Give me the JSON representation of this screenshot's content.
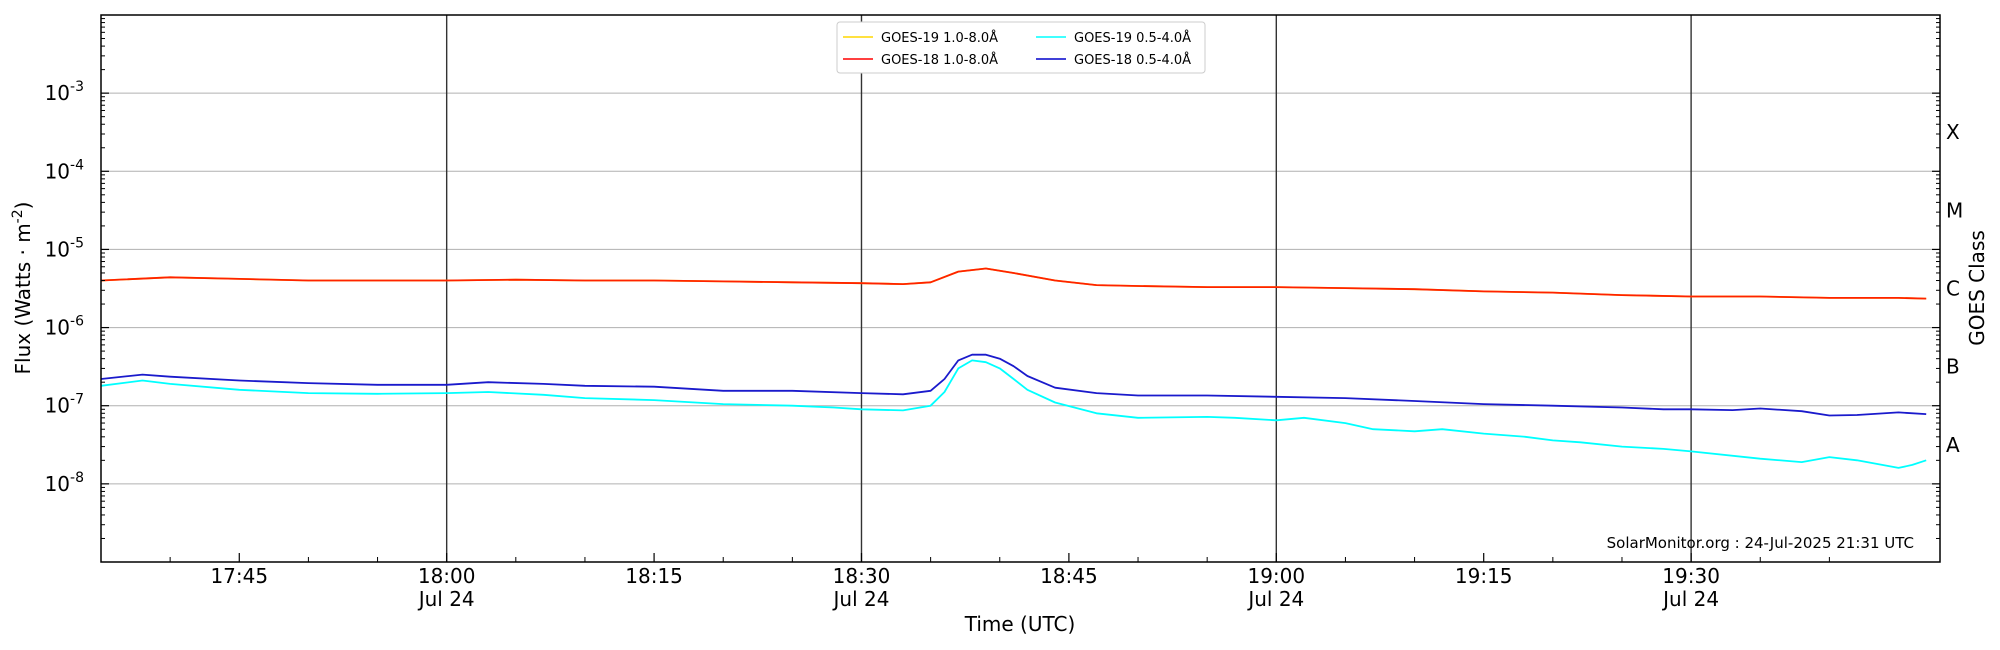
{
  "chart_data": {
    "type": "line",
    "xlabel": "Time (UTC)",
    "ylabel": "Flux (Watts · m",
    "ylabel_unit_exponent": "-2",
    "ylabel_close": ")",
    "y_scale": "log",
    "ylim": [
      1e-09,
      0.01
    ],
    "xlim": [
      "17:35",
      "19:48"
    ],
    "y_ticks": [
      {
        "value": 1e-08,
        "base": "10",
        "exp": "-8"
      },
      {
        "value": 1e-07,
        "base": "10",
        "exp": "-7"
      },
      {
        "value": 1e-06,
        "base": "10",
        "exp": "-6"
      },
      {
        "value": 1e-05,
        "base": "10",
        "exp": "-5"
      },
      {
        "value": 0.0001,
        "base": "10",
        "exp": "-4"
      },
      {
        "value": 0.001,
        "base": "10",
        "exp": "-3"
      }
    ],
    "x_ticks": [
      {
        "time": "17:45",
        "label": "17:45",
        "date": ""
      },
      {
        "time": "18:00",
        "label": "18:00",
        "date": "Jul 24"
      },
      {
        "time": "18:15",
        "label": "18:15",
        "date": ""
      },
      {
        "time": "18:30",
        "label": "18:30",
        "date": "Jul 24"
      },
      {
        "time": "18:45",
        "label": "18:45",
        "date": ""
      },
      {
        "time": "19:00",
        "label": "19:00",
        "date": "Jul 24"
      },
      {
        "time": "19:15",
        "label": "19:15",
        "date": ""
      },
      {
        "time": "19:30",
        "label": "19:30",
        "date": "Jul 24"
      }
    ],
    "vertical_lines": [
      "18:00",
      "18:30",
      "19:00",
      "19:30"
    ],
    "grid": "horizontal",
    "right_axis": {
      "title": "GOES Class",
      "classes": [
        {
          "label": "A",
          "value": 1e-08
        },
        {
          "label": "B",
          "value": 1e-07
        },
        {
          "label": "C",
          "value": 1e-06
        },
        {
          "label": "M",
          "value": 1e-05
        },
        {
          "label": "X",
          "value": 0.0001
        }
      ]
    },
    "legend": {
      "location": "upper center",
      "entries": [
        {
          "name": "GOES-19 1.0-8.0Å",
          "color": "#ffd700"
        },
        {
          "name": "GOES-19 0.5-4.0Å",
          "color": "#00ffff"
        },
        {
          "name": "GOES-18 1.0-8.0Å",
          "color": "#ff0000"
        },
        {
          "name": "GOES-18 0.5-4.0Å",
          "color": "#0000cc"
        }
      ]
    },
    "credit": "SolarMonitor.org : 24-Jul-2025 21:31 UTC",
    "series": [
      {
        "name": "GOES-19 1.0-8.0Å",
        "color": "#ffd700",
        "x": [
          "17:35",
          "17:40",
          "17:45",
          "17:50",
          "17:55",
          "18:00",
          "18:05",
          "18:10",
          "18:15",
          "18:20",
          "18:25",
          "18:30",
          "18:33",
          "18:35",
          "18:37",
          "18:39",
          "18:41",
          "18:44",
          "18:47",
          "18:50",
          "18:55",
          "19:00",
          "19:05",
          "19:10",
          "19:15",
          "19:20",
          "19:25",
          "19:30",
          "19:35",
          "19:40",
          "19:45",
          "19:47"
        ],
        "values": [
          4e-06,
          4.4e-06,
          4.2e-06,
          4e-06,
          4e-06,
          4e-06,
          4.1e-06,
          4e-06,
          4e-06,
          3.9e-06,
          3.8e-06,
          3.7e-06,
          3.6e-06,
          3.8e-06,
          5.2e-06,
          5.7e-06,
          5e-06,
          4e-06,
          3.5e-06,
          3.4e-06,
          3.3e-06,
          3.3e-06,
          3.2e-06,
          3.1e-06,
          2.9e-06,
          2.8e-06,
          2.6e-06,
          2.5e-06,
          2.5e-06,
          2.4e-06,
          2.4e-06,
          2.35e-06
        ]
      },
      {
        "name": "GOES-18 1.0-8.0Å",
        "color": "#ff2200",
        "x": [
          "17:35",
          "17:40",
          "17:45",
          "17:50",
          "17:55",
          "18:00",
          "18:05",
          "18:10",
          "18:15",
          "18:20",
          "18:25",
          "18:30",
          "18:33",
          "18:35",
          "18:37",
          "18:39",
          "18:41",
          "18:44",
          "18:47",
          "18:50",
          "18:55",
          "19:00",
          "19:05",
          "19:10",
          "19:15",
          "19:20",
          "19:25",
          "19:30",
          "19:35",
          "19:40",
          "19:45",
          "19:47"
        ],
        "values": [
          4e-06,
          4.4e-06,
          4.2e-06,
          4e-06,
          4e-06,
          4e-06,
          4.1e-06,
          4e-06,
          4e-06,
          3.9e-06,
          3.8e-06,
          3.7e-06,
          3.6e-06,
          3.8e-06,
          5.2e-06,
          5.7e-06,
          5e-06,
          4e-06,
          3.5e-06,
          3.4e-06,
          3.3e-06,
          3.3e-06,
          3.2e-06,
          3.1e-06,
          2.9e-06,
          2.8e-06,
          2.6e-06,
          2.5e-06,
          2.5e-06,
          2.4e-06,
          2.4e-06,
          2.35e-06
        ]
      },
      {
        "name": "GOES-19 0.5-4.0Å",
        "color": "#00ffff",
        "x": [
          "17:35",
          "17:38",
          "17:40",
          "17:45",
          "17:50",
          "17:55",
          "18:00",
          "18:03",
          "18:07",
          "18:10",
          "18:15",
          "18:20",
          "18:25",
          "18:28",
          "18:30",
          "18:33",
          "18:35",
          "18:36",
          "18:37",
          "18:38",
          "18:39",
          "18:40",
          "18:41",
          "18:42",
          "18:44",
          "18:47",
          "18:50",
          "18:55",
          "18:57",
          "19:00",
          "19:02",
          "19:05",
          "19:07",
          "19:10",
          "19:12",
          "19:15",
          "19:18",
          "19:20",
          "19:22",
          "19:25",
          "19:28",
          "19:30",
          "19:35",
          "19:38",
          "19:40",
          "19:42",
          "19:45",
          "19:46",
          "19:47"
        ],
        "values": [
          1.8e-07,
          2.1e-07,
          1.9e-07,
          1.6e-07,
          1.45e-07,
          1.42e-07,
          1.45e-07,
          1.5e-07,
          1.38e-07,
          1.25e-07,
          1.18e-07,
          1.05e-07,
          1e-07,
          9.5e-08,
          9e-08,
          8.7e-08,
          1e-07,
          1.5e-07,
          3e-07,
          3.8e-07,
          3.6e-07,
          3e-07,
          2.2e-07,
          1.6e-07,
          1.1e-07,
          8e-08,
          7e-08,
          7.2e-08,
          7e-08,
          6.5e-08,
          7e-08,
          6e-08,
          5e-08,
          4.7e-08,
          5e-08,
          4.4e-08,
          4e-08,
          3.6e-08,
          3.4e-08,
          3e-08,
          2.8e-08,
          2.6e-08,
          2.1e-08,
          1.9e-08,
          2.2e-08,
          2e-08,
          1.6e-08,
          1.75e-08,
          2e-08
        ]
      },
      {
        "name": "GOES-18 0.5-4.0Å",
        "color": "#1a1acc",
        "x": [
          "17:35",
          "17:38",
          "17:40",
          "17:45",
          "17:50",
          "17:55",
          "18:00",
          "18:03",
          "18:07",
          "18:10",
          "18:15",
          "18:20",
          "18:25",
          "18:30",
          "18:33",
          "18:35",
          "18:36",
          "18:37",
          "18:38",
          "18:39",
          "18:40",
          "18:41",
          "18:42",
          "18:44",
          "18:47",
          "18:50",
          "18:55",
          "19:00",
          "19:05",
          "19:10",
          "19:15",
          "19:20",
          "19:25",
          "19:28",
          "19:30",
          "19:33",
          "19:35",
          "19:38",
          "19:40",
          "19:42",
          "19:45",
          "19:47"
        ],
        "values": [
          2.2e-07,
          2.5e-07,
          2.35e-07,
          2.1e-07,
          1.95e-07,
          1.85e-07,
          1.85e-07,
          2e-07,
          1.9e-07,
          1.8e-07,
          1.75e-07,
          1.55e-07,
          1.55e-07,
          1.45e-07,
          1.4e-07,
          1.55e-07,
          2.2e-07,
          3.8e-07,
          4.5e-07,
          4.5e-07,
          4e-07,
          3.2e-07,
          2.4e-07,
          1.7e-07,
          1.45e-07,
          1.35e-07,
          1.35e-07,
          1.3e-07,
          1.25e-07,
          1.15e-07,
          1.05e-07,
          1e-07,
          9.5e-08,
          9e-08,
          9e-08,
          8.8e-08,
          9.2e-08,
          8.5e-08,
          7.5e-08,
          7.6e-08,
          8.2e-08,
          7.8e-08
        ]
      }
    ]
  }
}
